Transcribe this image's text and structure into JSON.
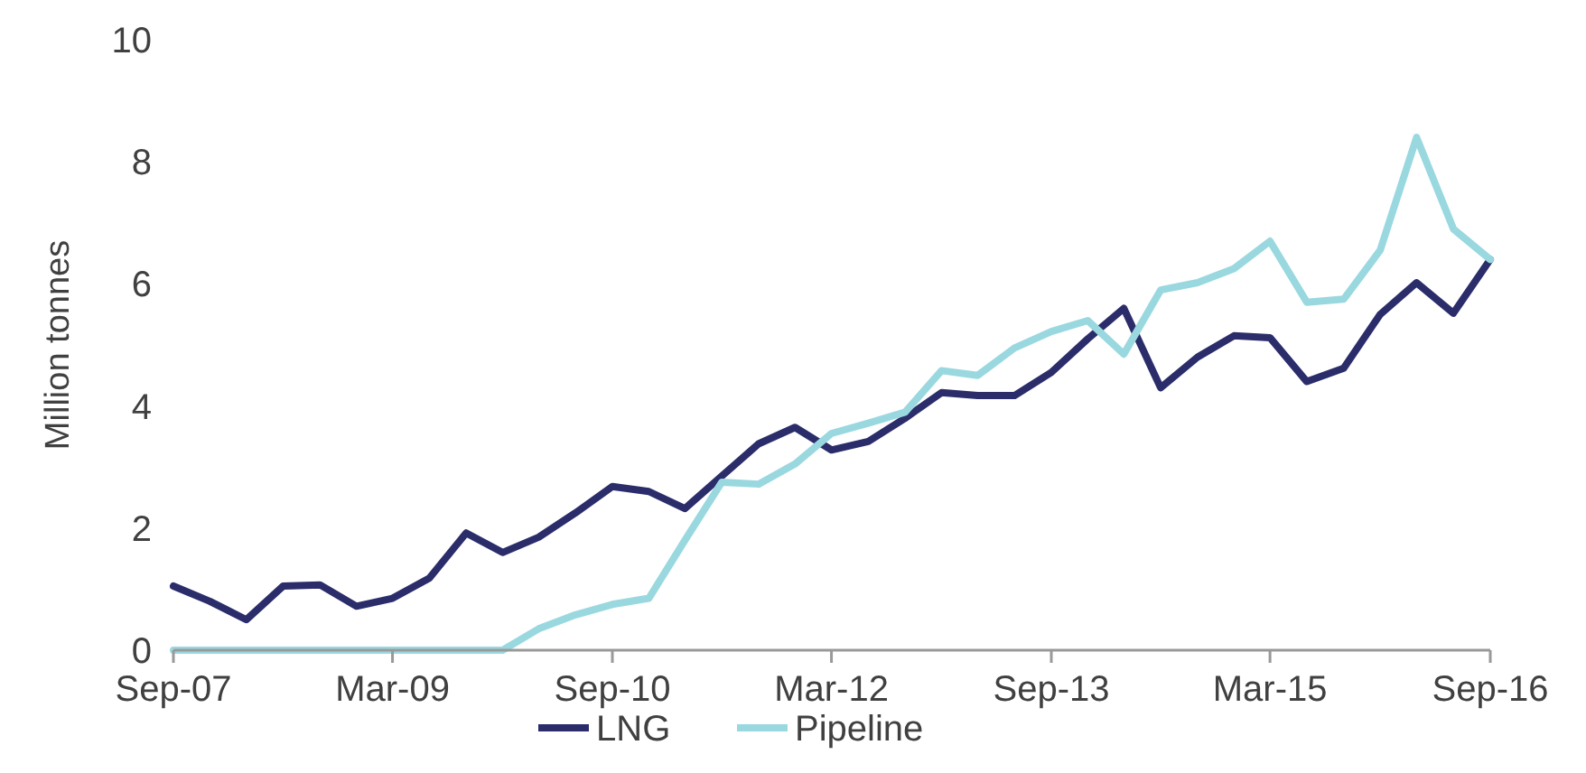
{
  "chart_data": {
    "type": "line",
    "ylabel": "Million tonnes",
    "x": [
      "2007-09",
      "2007-12",
      "2008-03",
      "2008-06",
      "2008-09",
      "2008-12",
      "2009-03",
      "2009-06",
      "2009-09",
      "2009-12",
      "2010-03",
      "2010-06",
      "2010-09",
      "2010-12",
      "2011-03",
      "2011-06",
      "2011-09",
      "2011-12",
      "2012-03",
      "2012-06",
      "2012-09",
      "2012-12",
      "2013-03",
      "2013-06",
      "2013-09",
      "2013-12",
      "2014-03",
      "2014-06",
      "2014-09",
      "2014-12",
      "2015-03",
      "2015-06",
      "2015-09",
      "2015-12",
      "2016-03",
      "2016-06",
      "2016-09"
    ],
    "series": [
      {
        "name": "LNG",
        "color": "#2b2d6b",
        "values": [
          1.05,
          0.8,
          0.5,
          1.05,
          1.07,
          0.72,
          0.85,
          1.18,
          1.92,
          1.6,
          1.85,
          2.25,
          2.68,
          2.6,
          2.32,
          2.85,
          3.38,
          3.65,
          3.28,
          3.42,
          3.8,
          4.22,
          4.17,
          4.17,
          4.55,
          5.1,
          5.6,
          4.3,
          4.8,
          5.15,
          5.12,
          4.4,
          4.62,
          5.5,
          6.02,
          5.52,
          6.4
        ]
      },
      {
        "name": "Pipeline",
        "color": "#9ad8e0",
        "values": [
          0,
          0,
          0,
          0,
          0,
          0,
          0,
          0,
          0,
          0,
          0.35,
          0.58,
          0.75,
          0.85,
          1.8,
          2.75,
          2.72,
          3.05,
          3.55,
          3.72,
          3.9,
          4.58,
          4.5,
          4.95,
          5.22,
          5.4,
          4.85,
          5.9,
          6.02,
          6.25,
          6.7,
          5.7,
          5.75,
          6.55,
          8.4,
          6.9,
          6.4
        ]
      }
    ],
    "xlim": [
      "2007-09",
      "2016-09"
    ],
    "xticks": [
      {
        "value": "2007-09",
        "label": "Sep-07"
      },
      {
        "value": "2009-03",
        "label": "Mar-09"
      },
      {
        "value": "2010-09",
        "label": "Sep-10"
      },
      {
        "value": "2012-03",
        "label": "Mar-12"
      },
      {
        "value": "2013-09",
        "label": "Sep-13"
      },
      {
        "value": "2015-03",
        "label": "Mar-15"
      },
      {
        "value": "2016-09",
        "label": "Sep-16"
      }
    ],
    "ylim": [
      0,
      10
    ],
    "yticks": [
      0,
      2,
      4,
      6,
      8,
      10
    ],
    "grid": false,
    "legend": "bottom",
    "marker": "none",
    "line_style": "solid"
  }
}
